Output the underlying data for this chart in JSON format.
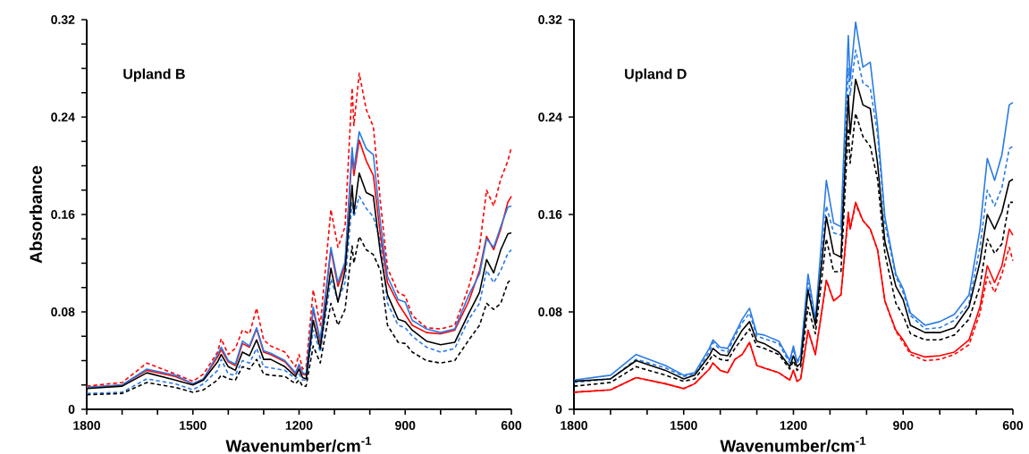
{
  "chart_data": [
    {
      "type": "line",
      "title": "Upland B",
      "xlabel": "Wavenumber/cm$^{-1}$",
      "ylabel": "Absorbance",
      "xlim": [
        1800,
        600
      ],
      "ylim": [
        0,
        0.32
      ],
      "xticks": [
        1800,
        {
          "value": 1700,
          "label": null
        },
        {
          "value": 1600,
          "label": null
        },
        1500,
        {
          "value": 1400,
          "label": null
        },
        {
          "value": 1300,
          "label": null
        },
        1200,
        {
          "value": 1100,
          "label": null
        },
        {
          "value": 1000,
          "label": null
        },
        900,
        {
          "value": 800,
          "label": null
        },
        {
          "value": 700,
          "label": null
        },
        600
      ],
      "yticks": [
        0,
        {
          "value": 0.02,
          "label": null
        },
        {
          "value": 0.04,
          "label": null
        },
        {
          "value": 0.06,
          "label": null
        },
        0.08,
        {
          "value": 0.1,
          "label": null
        },
        {
          "value": 0.12,
          "label": null
        },
        {
          "value": 0.14,
          "label": null
        },
        0.16,
        {
          "value": 0.18,
          "label": null
        },
        {
          "value": 0.2,
          "label": null
        },
        {
          "value": 0.22,
          "label": null
        },
        0.24,
        {
          "value": 0.26,
          "label": null
        },
        {
          "value": 0.28,
          "label": null
        },
        {
          "value": 0.3,
          "label": null
        },
        0.32
      ],
      "x": [
        1800,
        1700,
        1630,
        1550,
        1500,
        1470,
        1430,
        1420,
        1400,
        1380,
        1360,
        1340,
        1320,
        1300,
        1280,
        1240,
        1210,
        1200,
        1190,
        1180,
        1160,
        1140,
        1110,
        1090,
        1070,
        1050,
        1045,
        1030,
        1010,
        990,
        970,
        950,
        920,
        900,
        880,
        840,
        800,
        760,
        720,
        690,
        670,
        650,
        630,
        610,
        600
      ],
      "series": [
        {
          "color": "#ff0000",
          "line_style": "solid",
          "values": [
            0.018,
            0.02,
            0.032,
            0.027,
            0.021,
            0.025,
            0.043,
            0.049,
            0.039,
            0.036,
            0.054,
            0.051,
            0.066,
            0.047,
            0.045,
            0.039,
            0.029,
            0.036,
            0.029,
            0.028,
            0.082,
            0.055,
            0.131,
            0.101,
            0.118,
            0.211,
            0.192,
            0.221,
            0.204,
            0.192,
            0.143,
            0.104,
            0.087,
            0.078,
            0.069,
            0.063,
            0.062,
            0.065,
            0.089,
            0.114,
            0.142,
            0.131,
            0.148,
            0.17,
            0.175
          ]
        },
        {
          "color": "#ff0000",
          "line_style": "dashed",
          "values": [
            0.019,
            0.022,
            0.038,
            0.029,
            0.023,
            0.029,
            0.047,
            0.058,
            0.045,
            0.05,
            0.065,
            0.062,
            0.083,
            0.057,
            0.052,
            0.047,
            0.035,
            0.045,
            0.033,
            0.035,
            0.098,
            0.069,
            0.164,
            0.133,
            0.15,
            0.264,
            0.233,
            0.276,
            0.246,
            0.232,
            0.17,
            0.116,
            0.096,
            0.093,
            0.077,
            0.067,
            0.066,
            0.069,
            0.101,
            0.133,
            0.18,
            0.167,
            0.189,
            0.204,
            0.215
          ]
        },
        {
          "color": "#2a7be4",
          "line_style": "solid",
          "values": [
            0.018,
            0.02,
            0.033,
            0.028,
            0.021,
            0.025,
            0.045,
            0.051,
            0.04,
            0.037,
            0.056,
            0.052,
            0.067,
            0.048,
            0.046,
            0.04,
            0.03,
            0.037,
            0.03,
            0.029,
            0.084,
            0.057,
            0.133,
            0.104,
            0.121,
            0.215,
            0.197,
            0.228,
            0.214,
            0.209,
            0.153,
            0.109,
            0.09,
            0.088,
            0.073,
            0.066,
            0.063,
            0.066,
            0.094,
            0.111,
            0.14,
            0.133,
            0.15,
            0.166,
            0.167
          ]
        },
        {
          "color": "#2a7be4",
          "line_style": "dashed",
          "values": [
            0.013,
            0.014,
            0.025,
            0.021,
            0.016,
            0.021,
            0.032,
            0.041,
            0.029,
            0.028,
            0.04,
            0.038,
            0.05,
            0.035,
            0.034,
            0.032,
            0.025,
            0.029,
            0.024,
            0.024,
            0.065,
            0.047,
            0.107,
            0.089,
            0.104,
            0.17,
            0.158,
            0.175,
            0.165,
            0.158,
            0.138,
            0.087,
            0.069,
            0.067,
            0.06,
            0.051,
            0.047,
            0.05,
            0.074,
            0.087,
            0.114,
            0.104,
            0.114,
            0.128,
            0.131
          ]
        },
        {
          "color": "#000000",
          "line_style": "solid",
          "values": [
            0.017,
            0.019,
            0.03,
            0.024,
            0.02,
            0.024,
            0.039,
            0.045,
            0.035,
            0.032,
            0.047,
            0.044,
            0.057,
            0.041,
            0.041,
            0.035,
            0.027,
            0.033,
            0.026,
            0.025,
            0.073,
            0.05,
            0.116,
            0.088,
            0.114,
            0.184,
            0.161,
            0.194,
            0.178,
            0.175,
            0.128,
            0.094,
            0.074,
            0.072,
            0.065,
            0.056,
            0.053,
            0.055,
            0.079,
            0.096,
            0.123,
            0.112,
            0.131,
            0.144,
            0.145
          ]
        },
        {
          "color": "#000000",
          "line_style": "dashed",
          "values": [
            0.012,
            0.013,
            0.022,
            0.018,
            0.014,
            0.016,
            0.024,
            0.028,
            0.025,
            0.024,
            0.035,
            0.033,
            0.041,
            0.029,
            0.028,
            0.027,
            0.021,
            0.024,
            0.019,
            0.019,
            0.052,
            0.038,
            0.087,
            0.069,
            0.082,
            0.134,
            0.12,
            0.142,
            0.131,
            0.127,
            0.114,
            0.069,
            0.055,
            0.054,
            0.047,
            0.04,
            0.038,
            0.04,
            0.057,
            0.069,
            0.087,
            0.082,
            0.087,
            0.104,
            0.107
          ]
        }
      ]
    },
    {
      "type": "line",
      "title": "Upland D",
      "xlabel": "Wavenumber/cm$^{-1}$",
      "xlim": [
        1800,
        600
      ],
      "ylim": [
        0,
        0.32
      ],
      "xticks": [
        1800,
        {
          "value": 1700,
          "label": null
        },
        {
          "value": 1600,
          "label": null
        },
        1500,
        {
          "value": 1400,
          "label": null
        },
        {
          "value": 1300,
          "label": null
        },
        1200,
        {
          "value": 1100,
          "label": null
        },
        {
          "value": 1000,
          "label": null
        },
        900,
        {
          "value": 800,
          "label": null
        },
        {
          "value": 700,
          "label": null
        },
        600
      ],
      "yticks": [
        0,
        0.08,
        0.16,
        0.24,
        0.32
      ],
      "x": [
        1800,
        1700,
        1630,
        1550,
        1500,
        1470,
        1430,
        1420,
        1400,
        1380,
        1360,
        1340,
        1320,
        1300,
        1280,
        1240,
        1210,
        1200,
        1190,
        1180,
        1160,
        1140,
        1110,
        1090,
        1070,
        1050,
        1045,
        1030,
        1010,
        990,
        970,
        950,
        920,
        900,
        880,
        840,
        800,
        760,
        720,
        690,
        670,
        650,
        630,
        610,
        600
      ],
      "series": [
        {
          "color": "#ff0000",
          "line_style": "solid",
          "values": [
            0.014,
            0.016,
            0.026,
            0.021,
            0.017,
            0.021,
            0.033,
            0.038,
            0.032,
            0.03,
            0.041,
            0.045,
            0.055,
            0.036,
            0.034,
            0.03,
            0.024,
            0.032,
            0.023,
            0.025,
            0.065,
            0.045,
            0.106,
            0.089,
            0.094,
            0.162,
            0.148,
            0.17,
            0.155,
            0.148,
            0.131,
            0.089,
            0.065,
            0.057,
            0.047,
            0.043,
            0.044,
            0.047,
            0.057,
            0.084,
            0.118,
            0.104,
            0.118,
            0.148,
            0.143
          ]
        },
        {
          "color": "#ff0000",
          "line_style": "dashed",
          "values": [
            0.014,
            0.016,
            0.026,
            0.021,
            0.017,
            0.021,
            0.033,
            0.038,
            0.032,
            0.03,
            0.041,
            0.045,
            0.055,
            0.036,
            0.034,
            0.03,
            0.024,
            0.032,
            0.023,
            0.025,
            0.065,
            0.045,
            0.106,
            0.089,
            0.094,
            0.16,
            0.148,
            0.168,
            0.155,
            0.148,
            0.131,
            0.089,
            0.064,
            0.055,
            0.045,
            0.04,
            0.041,
            0.045,
            0.053,
            0.079,
            0.109,
            0.096,
            0.111,
            0.133,
            0.122
          ]
        },
        {
          "color": "#2a7be4",
          "line_style": "solid",
          "values": [
            0.024,
            0.028,
            0.045,
            0.036,
            0.028,
            0.03,
            0.05,
            0.057,
            0.051,
            0.05,
            0.062,
            0.074,
            0.083,
            0.062,
            0.061,
            0.056,
            0.04,
            0.052,
            0.039,
            0.045,
            0.111,
            0.074,
            0.188,
            0.153,
            0.15,
            0.307,
            0.27,
            0.318,
            0.281,
            0.285,
            0.233,
            0.158,
            0.111,
            0.099,
            0.079,
            0.069,
            0.072,
            0.078,
            0.094,
            0.148,
            0.206,
            0.188,
            0.209,
            0.25,
            0.252
          ]
        },
        {
          "color": "#2a7be4",
          "line_style": "dashed",
          "values": [
            0.022,
            0.025,
            0.041,
            0.034,
            0.027,
            0.029,
            0.047,
            0.055,
            0.049,
            0.047,
            0.06,
            0.071,
            0.079,
            0.06,
            0.058,
            0.054,
            0.038,
            0.05,
            0.038,
            0.043,
            0.104,
            0.072,
            0.167,
            0.145,
            0.143,
            0.28,
            0.258,
            0.295,
            0.268,
            0.264,
            0.226,
            0.153,
            0.109,
            0.096,
            0.077,
            0.066,
            0.067,
            0.073,
            0.087,
            0.133,
            0.18,
            0.167,
            0.182,
            0.214,
            0.216
          ]
        },
        {
          "color": "#000000",
          "line_style": "solid",
          "values": [
            0.023,
            0.025,
            0.04,
            0.032,
            0.025,
            0.028,
            0.044,
            0.05,
            0.045,
            0.044,
            0.055,
            0.065,
            0.072,
            0.056,
            0.054,
            0.047,
            0.035,
            0.044,
            0.035,
            0.038,
            0.098,
            0.069,
            0.158,
            0.128,
            0.125,
            0.258,
            0.226,
            0.271,
            0.25,
            0.247,
            0.202,
            0.138,
            0.101,
            0.09,
            0.069,
            0.063,
            0.063,
            0.067,
            0.084,
            0.121,
            0.16,
            0.148,
            0.162,
            0.187,
            0.189
          ]
        },
        {
          "color": "#000000",
          "line_style": "dashed",
          "values": [
            0.019,
            0.022,
            0.035,
            0.028,
            0.023,
            0.025,
            0.04,
            0.045,
            0.041,
            0.04,
            0.05,
            0.058,
            0.066,
            0.052,
            0.05,
            0.045,
            0.033,
            0.04,
            0.032,
            0.035,
            0.084,
            0.062,
            0.14,
            0.113,
            0.113,
            0.231,
            0.202,
            0.243,
            0.224,
            0.216,
            0.189,
            0.128,
            0.087,
            0.077,
            0.062,
            0.057,
            0.057,
            0.061,
            0.074,
            0.101,
            0.14,
            0.128,
            0.136,
            0.17,
            0.17
          ]
        }
      ]
    }
  ]
}
